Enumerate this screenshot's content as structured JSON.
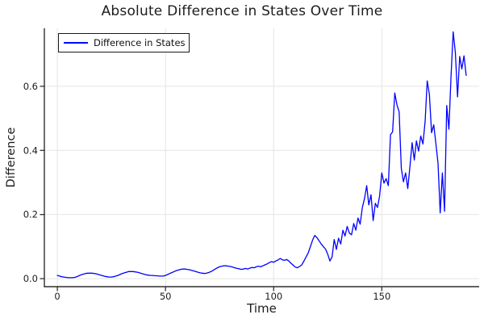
{
  "title": "Absolute Difference in States Over Time",
  "colors": {
    "series": "#0000FF",
    "grid": "#E4E4E4",
    "axis": "#2F2F2F",
    "text": "#1C1C1C",
    "background": "#FFFFFF",
    "legend_border": "#1A1A1A"
  },
  "chart_data": {
    "type": "line",
    "title": "Absolute Difference in States Over Time",
    "xlabel": "Time",
    "ylabel": "Difference",
    "legend_position": "top-left",
    "grid": true,
    "xlim": [
      -6,
      195
    ],
    "ylim": [
      -0.025,
      0.781
    ],
    "xtick_values": [
      0,
      50,
      100,
      150
    ],
    "xtick_labels": [
      "0",
      "50",
      "100",
      "150"
    ],
    "ytick_values": [
      0.0,
      0.2,
      0.4,
      0.6
    ],
    "ytick_labels": [
      "0.0",
      "0.2",
      "0.4",
      "0.6"
    ],
    "series": [
      {
        "name": "Difference in States",
        "color": "#0000FF",
        "x_start": 0,
        "x_step": 1,
        "values": [
          0.01,
          0.008,
          0.006,
          0.005,
          0.004,
          0.003,
          0.003,
          0.003,
          0.004,
          0.006,
          0.009,
          0.012,
          0.014,
          0.016,
          0.017,
          0.017,
          0.017,
          0.016,
          0.015,
          0.013,
          0.011,
          0.009,
          0.007,
          0.006,
          0.005,
          0.005,
          0.006,
          0.008,
          0.01,
          0.013,
          0.016,
          0.018,
          0.02,
          0.022,
          0.022,
          0.022,
          0.021,
          0.02,
          0.018,
          0.016,
          0.014,
          0.012,
          0.011,
          0.01,
          0.01,
          0.009,
          0.009,
          0.008,
          0.008,
          0.008,
          0.01,
          0.013,
          0.016,
          0.019,
          0.022,
          0.025,
          0.027,
          0.029,
          0.03,
          0.03,
          0.029,
          0.028,
          0.026,
          0.024,
          0.022,
          0.02,
          0.018,
          0.017,
          0.016,
          0.017,
          0.019,
          0.022,
          0.026,
          0.03,
          0.034,
          0.037,
          0.039,
          0.04,
          0.04,
          0.039,
          0.038,
          0.036,
          0.034,
          0.032,
          0.031,
          0.029,
          0.03,
          0.032,
          0.03,
          0.033,
          0.035,
          0.034,
          0.037,
          0.039,
          0.037,
          0.04,
          0.043,
          0.046,
          0.05,
          0.053,
          0.051,
          0.055,
          0.058,
          0.063,
          0.059,
          0.057,
          0.06,
          0.055,
          0.048,
          0.042,
          0.036,
          0.034,
          0.038,
          0.043,
          0.055,
          0.068,
          0.081,
          0.1,
          0.12,
          0.135,
          0.128,
          0.118,
          0.108,
          0.1,
          0.092,
          0.076,
          0.055,
          0.068,
          0.122,
          0.091,
          0.126,
          0.108,
          0.151,
          0.133,
          0.163,
          0.142,
          0.137,
          0.172,
          0.151,
          0.189,
          0.17,
          0.222,
          0.25,
          0.29,
          0.23,
          0.262,
          0.181,
          0.235,
          0.222,
          0.258,
          0.33,
          0.298,
          0.312,
          0.29,
          0.449,
          0.458,
          0.579,
          0.542,
          0.52,
          0.344,
          0.302,
          0.33,
          0.281,
          0.35,
          0.424,
          0.37,
          0.43,
          0.398,
          0.445,
          0.42,
          0.49,
          0.617,
          0.575,
          0.455,
          0.48,
          0.42,
          0.36,
          0.205,
          0.33,
          0.21,
          0.54,
          0.466,
          0.63,
          0.77,
          0.705,
          0.567,
          0.693,
          0.654,
          0.695,
          0.634
        ]
      }
    ]
  }
}
